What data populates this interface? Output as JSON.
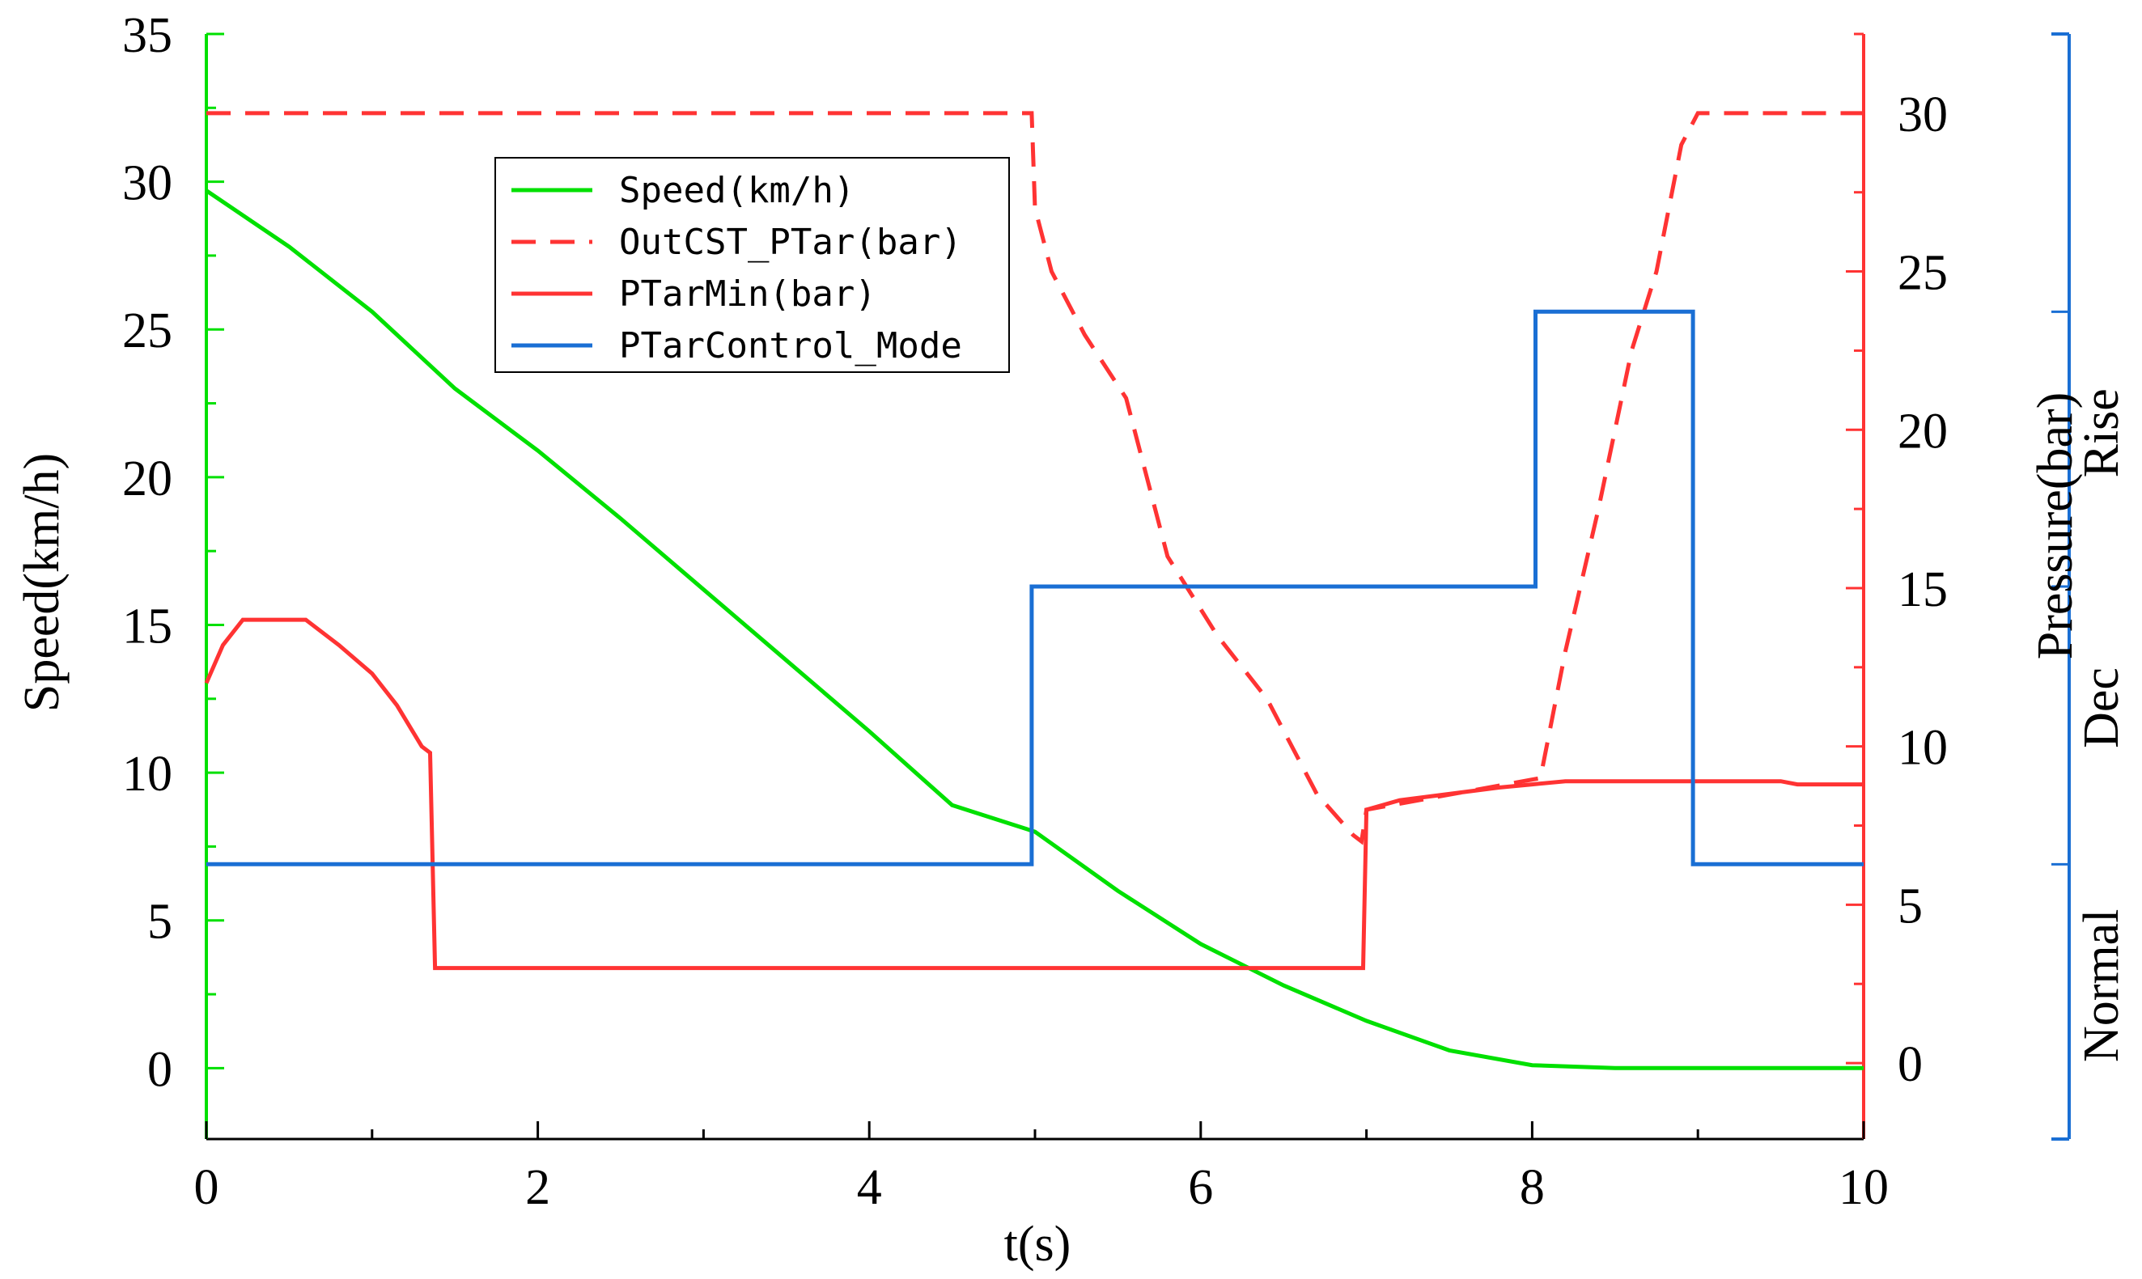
{
  "chart_data": {
    "type": "line",
    "xlabel": "t(s)",
    "ylabel_left": "Speed(km/h)",
    "ylabel_right": "Pressure(bar)",
    "xlim": [
      0,
      10
    ],
    "ylim_left": [
      -2.4,
      35
    ],
    "ylim_right": [
      -2.4,
      32.5
    ],
    "x_ticks": [
      0,
      2,
      4,
      6,
      8,
      10
    ],
    "left_ticks": [
      0,
      5,
      10,
      15,
      20,
      25,
      30,
      35
    ],
    "right_ticks": [
      0,
      5,
      10,
      15,
      20,
      25,
      30
    ],
    "mode_axis": {
      "labels": [
        "Normal",
        "Dec",
        "Rise"
      ],
      "values": [
        6.9,
        16.3,
        25.6
      ]
    },
    "grid": false,
    "legend_position": "top-left inside plot",
    "colors": {
      "speed": "#00e000",
      "pressure": "#ff3333",
      "mode": "#1a6fd4"
    },
    "series": [
      {
        "name": "Speed(km/h)",
        "axis": "left",
        "style": "solid",
        "color": "#00e000",
        "x": [
          0,
          0.5,
          1,
          1.5,
          2,
          2.5,
          3,
          3.5,
          4,
          4.5,
          5,
          5.5,
          6,
          6.5,
          7,
          7.5,
          8,
          8.5,
          9,
          9.5,
          10
        ],
        "y": [
          29.7,
          27.8,
          25.6,
          23.0,
          20.9,
          18.6,
          16.2,
          13.8,
          11.4,
          8.9,
          8.0,
          6.0,
          4.2,
          2.8,
          1.6,
          0.6,
          0.1,
          0.0,
          0.0,
          0.0,
          0.0
        ]
      },
      {
        "name": "OutCST_PTar(bar)",
        "axis": "right",
        "style": "dashed",
        "color": "#ff3333",
        "x": [
          0,
          4.98,
          5.0,
          5.1,
          5.3,
          5.55,
          5.8,
          6.1,
          6.4,
          6.7,
          6.92,
          6.97,
          7.0,
          8.05,
          8.2,
          8.4,
          8.6,
          8.75,
          8.9,
          9.0,
          10
        ],
        "y": [
          30,
          30,
          27,
          25,
          23,
          21,
          16,
          13.5,
          11.5,
          8.5,
          7.2,
          7.0,
          8.0,
          9.0,
          13,
          17.5,
          22.5,
          25,
          29,
          30,
          30
        ]
      },
      {
        "name": "PTarMin(bar)",
        "axis": "right",
        "style": "solid",
        "color": "#ff3333",
        "x": [
          0,
          0.1,
          0.22,
          0.35,
          0.6,
          0.8,
          1.0,
          1.15,
          1.3,
          1.35,
          1.38,
          3.0,
          6.98,
          7.0,
          7.2,
          7.5,
          7.8,
          8.0,
          8.2,
          9.0,
          9.5,
          9.6,
          10
        ],
        "y": [
          12,
          13.2,
          14,
          14,
          14,
          13.2,
          12.3,
          11.3,
          10.0,
          9.8,
          3.0,
          3.0,
          3.0,
          8.0,
          8.3,
          8.5,
          8.7,
          8.8,
          8.9,
          8.9,
          8.9,
          8.8,
          8.8
        ]
      },
      {
        "name": "PTarControl_Mode",
        "axis": "left",
        "style": "solid",
        "color": "#1a6fd4",
        "x": [
          0,
          4.98,
          4.98,
          8.02,
          8.02,
          8.97,
          8.97,
          10
        ],
        "y": [
          6.9,
          6.9,
          16.3,
          16.3,
          25.6,
          25.6,
          6.9,
          6.9
        ]
      }
    ]
  }
}
